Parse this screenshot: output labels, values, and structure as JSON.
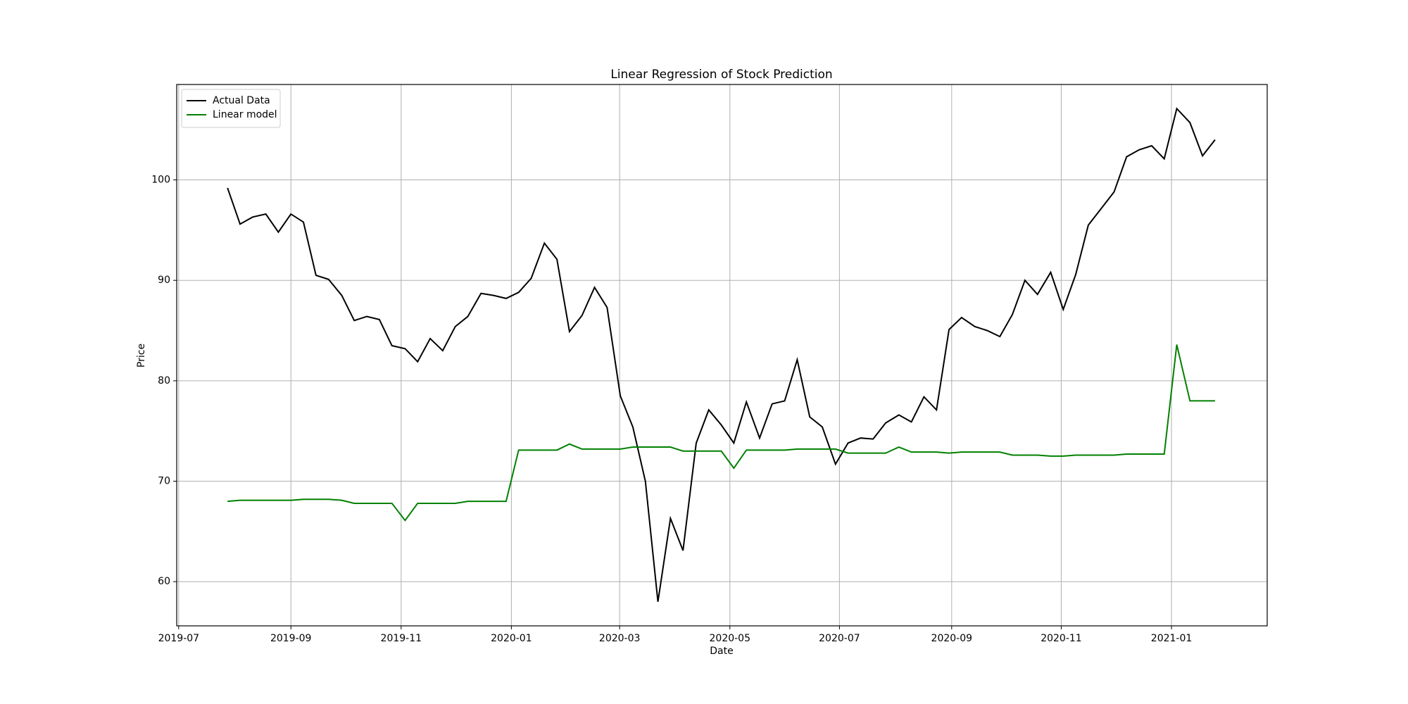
{
  "chart_data": {
    "type": "line",
    "title": "Linear Regression of Stock Prediction",
    "xlabel": "Date",
    "ylabel": "Price",
    "x": [
      2019.57,
      2019.589,
      2019.608,
      2019.628,
      2019.647,
      2019.666,
      2019.685,
      2019.704,
      2019.723,
      2019.743,
      2019.762,
      2019.781,
      2019.8,
      2019.819,
      2019.839,
      2019.858,
      2019.877,
      2019.896,
      2019.915,
      2019.934,
      2019.954,
      2019.973,
      2019.992,
      2020.011,
      2020.03,
      2020.05,
      2020.069,
      2020.088,
      2020.107,
      2020.126,
      2020.145,
      2020.165,
      2020.184,
      2020.203,
      2020.222,
      2020.241,
      2020.26,
      2020.28,
      2020.299,
      2020.318,
      2020.337,
      2020.356,
      2020.376,
      2020.395,
      2020.414,
      2020.433,
      2020.452,
      2020.471,
      2020.491,
      2020.51,
      2020.529,
      2020.548,
      2020.567,
      2020.587,
      2020.606,
      2020.625,
      2020.644,
      2020.663,
      2020.682,
      2020.702,
      2020.721,
      2020.74,
      2020.759,
      2020.778,
      2020.797,
      2020.817,
      2020.836,
      2020.855,
      2020.874,
      2020.893,
      2020.913,
      2020.932,
      2020.951,
      2020.97,
      2020.989,
      2021.008,
      2021.028,
      2021.047,
      2021.066
    ],
    "series": [
      {
        "name": "Actual Data",
        "color": "#000000",
        "values": [
          99.2,
          95.6,
          96.3,
          96.6,
          94.8,
          96.6,
          95.8,
          90.5,
          90.1,
          88.5,
          86.0,
          86.4,
          86.1,
          83.5,
          83.2,
          81.9,
          84.2,
          83.0,
          85.4,
          86.4,
          88.7,
          88.5,
          88.2,
          88.8,
          90.2,
          93.7,
          92.1,
          84.9,
          86.5,
          89.3,
          87.3,
          78.5,
          75.4,
          70.0,
          58.0,
          66.3,
          63.1,
          73.8,
          77.1,
          75.6,
          73.8,
          77.9,
          74.3,
          77.7,
          78.0,
          82.1,
          76.4,
          75.4,
          71.7,
          73.8,
          74.3,
          74.2,
          75.8,
          76.6,
          75.9,
          78.4,
          77.1,
          85.1,
          86.3,
          85.4,
          85.0,
          84.4,
          86.6,
          90.0,
          88.6,
          90.8,
          87.1,
          90.6,
          95.5,
          97.1,
          98.8,
          102.3,
          103.0,
          103.4,
          102.1,
          107.1,
          105.7,
          102.4,
          104.0
        ]
      },
      {
        "name": "Linear model",
        "color": "#008000",
        "values": [
          68.0,
          68.1,
          68.1,
          68.1,
          68.1,
          68.1,
          68.2,
          68.2,
          68.2,
          68.1,
          67.8,
          67.8,
          67.8,
          67.8,
          66.1,
          67.8,
          67.8,
          67.8,
          67.8,
          68.0,
          68.0,
          68.0,
          68.0,
          73.1,
          73.1,
          73.1,
          73.1,
          73.7,
          73.2,
          73.2,
          73.2,
          73.2,
          73.4,
          73.4,
          73.4,
          73.4,
          73.0,
          73.0,
          73.0,
          73.0,
          71.3,
          73.1,
          73.1,
          73.1,
          73.1,
          73.2,
          73.2,
          73.2,
          73.2,
          72.8,
          72.8,
          72.8,
          72.8,
          73.4,
          72.9,
          72.9,
          72.9,
          72.8,
          72.9,
          72.9,
          72.9,
          72.9,
          72.6,
          72.6,
          72.6,
          72.5,
          72.5,
          72.6,
          72.6,
          72.6,
          72.6,
          72.7,
          72.7,
          72.7,
          72.7,
          83.6,
          78.0,
          78.0,
          78.0
        ]
      }
    ],
    "xlim": [
      2019.493,
      2021.145
    ],
    "xticks": [
      {
        "value": 2019.496,
        "label": "2019-07"
      },
      {
        "value": 2019.666,
        "label": "2019-09"
      },
      {
        "value": 2019.833,
        "label": "2019-11"
      },
      {
        "value": 2020.0,
        "label": "2020-01"
      },
      {
        "value": 2020.164,
        "label": "2020-03"
      },
      {
        "value": 2020.331,
        "label": "2020-05"
      },
      {
        "value": 2020.497,
        "label": "2020-07"
      },
      {
        "value": 2020.667,
        "label": "2020-09"
      },
      {
        "value": 2020.833,
        "label": "2020-11"
      },
      {
        "value": 2021.0,
        "label": "2021-01"
      }
    ],
    "ylim": [
      55.6,
      109.5
    ],
    "yticks": [
      60,
      70,
      80,
      90,
      100
    ],
    "grid": true,
    "legend": "upper left"
  }
}
